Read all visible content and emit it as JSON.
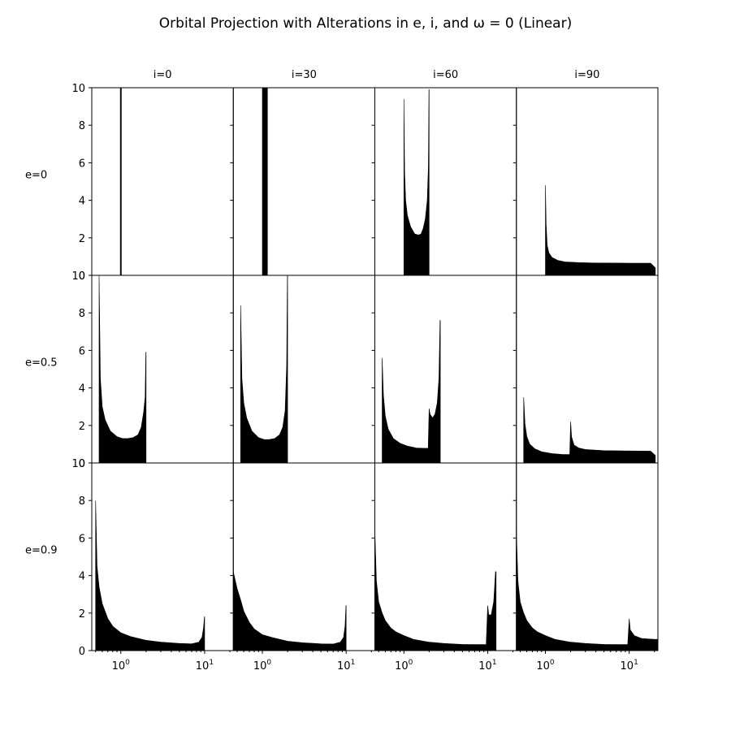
{
  "figure": {
    "title": "Orbital Projection with Alterations in e, i, and ω = 0 (Linear)"
  },
  "chart_data": {
    "type": "bar",
    "title": "Orbital Projection with Alterations in e, i, and ω = 0 (Linear)",
    "layout": "3x4 grid of histograms, shared axes",
    "column_labels": [
      "i=0",
      "i=30",
      "i=60",
      "i=90"
    ],
    "row_labels": [
      "e=0",
      "e=0.5",
      "e=0.9"
    ],
    "x_scale": "log",
    "x_range": [
      0.45,
      22
    ],
    "x_ticks": [
      {
        "value": 1,
        "base": "10",
        "exp": "0"
      },
      {
        "value": 10,
        "base": "10",
        "exp": "1"
      }
    ],
    "y_range": [
      0,
      10
    ],
    "y_ticks": [
      0,
      2,
      4,
      6,
      8,
      10
    ],
    "bar_color": "#000000",
    "panels": [
      {
        "row": 0,
        "col": 0,
        "profile": [
          [
            0.985,
            10.5
          ],
          [
            1.015,
            10.5
          ]
        ]
      },
      {
        "row": 0,
        "col": 1,
        "profile": [
          [
            1.0,
            10.5
          ],
          [
            1.15,
            10.5
          ]
        ]
      },
      {
        "row": 0,
        "col": 2,
        "profile": [
          [
            1.0,
            9.4
          ],
          [
            1.02,
            5.5
          ],
          [
            1.05,
            4.0
          ],
          [
            1.1,
            3.2
          ],
          [
            1.2,
            2.6
          ],
          [
            1.35,
            2.2
          ],
          [
            1.5,
            2.15
          ],
          [
            1.6,
            2.2
          ],
          [
            1.7,
            2.5
          ],
          [
            1.8,
            3.0
          ],
          [
            1.9,
            4.0
          ],
          [
            1.96,
            5.8
          ],
          [
            1.99,
            9.9
          ],
          [
            2.0,
            9.9
          ]
        ]
      },
      {
        "row": 0,
        "col": 3,
        "profile": [
          [
            1.0,
            4.8
          ],
          [
            1.02,
            2.7
          ],
          [
            1.05,
            1.6
          ],
          [
            1.1,
            1.2
          ],
          [
            1.2,
            0.95
          ],
          [
            1.4,
            0.8
          ],
          [
            1.7,
            0.72
          ],
          [
            2.5,
            0.68
          ],
          [
            4.0,
            0.66
          ],
          [
            10.0,
            0.65
          ],
          [
            18.0,
            0.65
          ],
          [
            20.5,
            0.4
          ]
        ]
      },
      {
        "row": 1,
        "col": 0,
        "profile": [
          [
            0.55,
            10.0
          ],
          [
            0.57,
            4.5
          ],
          [
            0.6,
            3.0
          ],
          [
            0.65,
            2.3
          ],
          [
            0.75,
            1.7
          ],
          [
            0.9,
            1.4
          ],
          [
            1.05,
            1.3
          ],
          [
            1.2,
            1.3
          ],
          [
            1.4,
            1.35
          ],
          [
            1.6,
            1.5
          ],
          [
            1.75,
            1.9
          ],
          [
            1.87,
            2.7
          ],
          [
            1.95,
            3.5
          ],
          [
            1.99,
            5.9
          ],
          [
            2.0,
            5.9
          ]
        ]
      },
      {
        "row": 1,
        "col": 1,
        "profile": [
          [
            0.55,
            8.4
          ],
          [
            0.57,
            4.5
          ],
          [
            0.6,
            3.2
          ],
          [
            0.65,
            2.4
          ],
          [
            0.75,
            1.7
          ],
          [
            0.9,
            1.35
          ],
          [
            1.05,
            1.25
          ],
          [
            1.2,
            1.25
          ],
          [
            1.4,
            1.3
          ],
          [
            1.6,
            1.5
          ],
          [
            1.75,
            1.9
          ],
          [
            1.87,
            2.8
          ],
          [
            1.95,
            5.2
          ],
          [
            1.99,
            10.0
          ],
          [
            2.0,
            10.0
          ]
        ]
      },
      {
        "row": 1,
        "col": 2,
        "profile": [
          [
            0.55,
            5.6
          ],
          [
            0.57,
            3.6
          ],
          [
            0.6,
            2.5
          ],
          [
            0.65,
            1.8
          ],
          [
            0.75,
            1.3
          ],
          [
            0.9,
            1.05
          ],
          [
            1.1,
            0.9
          ],
          [
            1.4,
            0.8
          ],
          [
            1.7,
            0.78
          ],
          [
            1.95,
            0.78
          ],
          [
            2.0,
            2.9
          ],
          [
            2.05,
            2.6
          ],
          [
            2.2,
            2.4
          ],
          [
            2.35,
            2.6
          ],
          [
            2.5,
            3.2
          ],
          [
            2.62,
            4.5
          ],
          [
            2.7,
            7.6
          ],
          [
            2.72,
            7.6
          ]
        ]
      },
      {
        "row": 1,
        "col": 3,
        "profile": [
          [
            0.55,
            3.5
          ],
          [
            0.57,
            2.1
          ],
          [
            0.6,
            1.4
          ],
          [
            0.65,
            1.0
          ],
          [
            0.75,
            0.75
          ],
          [
            0.9,
            0.6
          ],
          [
            1.2,
            0.5
          ],
          [
            1.6,
            0.45
          ],
          [
            1.95,
            0.45
          ],
          [
            2.0,
            2.2
          ],
          [
            2.05,
            1.4
          ],
          [
            2.2,
            0.95
          ],
          [
            2.5,
            0.8
          ],
          [
            3.0,
            0.72
          ],
          [
            5.0,
            0.66
          ],
          [
            10.0,
            0.64
          ],
          [
            18.0,
            0.63
          ],
          [
            20.5,
            0.4
          ]
        ]
      },
      {
        "row": 2,
        "col": 0,
        "profile": [
          [
            0.5,
            8.0
          ],
          [
            0.52,
            4.5
          ],
          [
            0.55,
            3.4
          ],
          [
            0.6,
            2.5
          ],
          [
            0.7,
            1.7
          ],
          [
            0.8,
            1.3
          ],
          [
            1.0,
            0.95
          ],
          [
            1.3,
            0.75
          ],
          [
            2.0,
            0.55
          ],
          [
            3.0,
            0.45
          ],
          [
            5.0,
            0.38
          ],
          [
            7.0,
            0.36
          ],
          [
            8.5,
            0.45
          ],
          [
            9.3,
            0.7
          ],
          [
            9.7,
            1.2
          ],
          [
            9.95,
            1.8
          ],
          [
            10.0,
            1.8
          ]
        ]
      },
      {
        "row": 2,
        "col": 1,
        "profile": [
          [
            0.45,
            4.2
          ],
          [
            0.5,
            3.3
          ],
          [
            0.55,
            2.7
          ],
          [
            0.6,
            2.1
          ],
          [
            0.7,
            1.5
          ],
          [
            0.8,
            1.15
          ],
          [
            1.0,
            0.85
          ],
          [
            1.3,
            0.7
          ],
          [
            2.0,
            0.5
          ],
          [
            3.0,
            0.42
          ],
          [
            5.0,
            0.36
          ],
          [
            7.0,
            0.35
          ],
          [
            8.5,
            0.45
          ],
          [
            9.3,
            0.7
          ],
          [
            9.7,
            1.3
          ],
          [
            9.95,
            2.4
          ],
          [
            10.0,
            2.4
          ]
        ]
      },
      {
        "row": 2,
        "col": 2,
        "profile": [
          [
            0.45,
            6.4
          ],
          [
            0.47,
            3.7
          ],
          [
            0.5,
            2.6
          ],
          [
            0.55,
            2.0
          ],
          [
            0.6,
            1.6
          ],
          [
            0.7,
            1.2
          ],
          [
            0.8,
            1.0
          ],
          [
            1.0,
            0.8
          ],
          [
            1.3,
            0.6
          ],
          [
            2.0,
            0.45
          ],
          [
            3.0,
            0.38
          ],
          [
            5.0,
            0.33
          ],
          [
            9.6,
            0.32
          ],
          [
            10.0,
            2.4
          ],
          [
            10.3,
            1.9
          ],
          [
            11.0,
            1.9
          ],
          [
            11.8,
            2.6
          ],
          [
            12.4,
            4.2
          ],
          [
            12.6,
            4.2
          ]
        ]
      },
      {
        "row": 2,
        "col": 3,
        "profile": [
          [
            0.45,
            6.4
          ],
          [
            0.47,
            3.7
          ],
          [
            0.5,
            2.6
          ],
          [
            0.55,
            2.0
          ],
          [
            0.6,
            1.6
          ],
          [
            0.7,
            1.2
          ],
          [
            0.8,
            1.0
          ],
          [
            1.0,
            0.8
          ],
          [
            1.3,
            0.6
          ],
          [
            2.0,
            0.45
          ],
          [
            3.0,
            0.38
          ],
          [
            5.0,
            0.33
          ],
          [
            9.6,
            0.32
          ],
          [
            10.0,
            1.7
          ],
          [
            10.3,
            1.1
          ],
          [
            11.5,
            0.8
          ],
          [
            14.0,
            0.65
          ],
          [
            20.0,
            0.6
          ],
          [
            21.8,
            0.6
          ]
        ]
      }
    ]
  }
}
